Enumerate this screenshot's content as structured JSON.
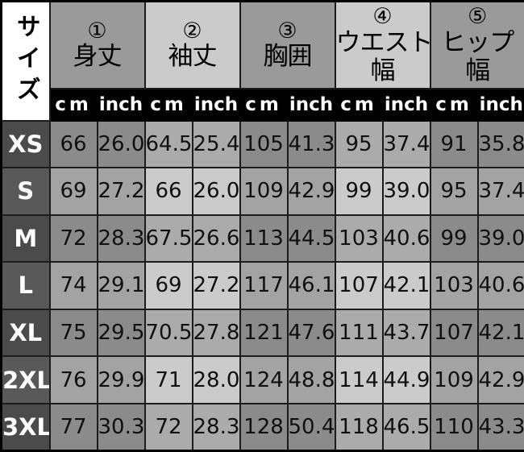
{
  "table": {
    "corner_label": "サイズ",
    "columns": [
      {
        "num": "①",
        "lines": [
          "身丈"
        ]
      },
      {
        "num": "②",
        "lines": [
          "袖丈"
        ]
      },
      {
        "num": "③",
        "lines": [
          "胸囲"
        ]
      },
      {
        "num": "④",
        "lines": [
          "ウエスト",
          "幅"
        ]
      },
      {
        "num": "⑤",
        "lines": [
          "ヒップ",
          "幅"
        ]
      }
    ],
    "unit_labels": {
      "cm": "cm",
      "inch": "inch"
    },
    "rows": [
      {
        "size": "XS",
        "values": [
          [
            "66",
            "26.0"
          ],
          [
            "64.5",
            "25.4"
          ],
          [
            "105",
            "41.3"
          ],
          [
            "95",
            "37.4"
          ],
          [
            "91",
            "35.8"
          ]
        ]
      },
      {
        "size": "S",
        "values": [
          [
            "69",
            "27.2"
          ],
          [
            "66",
            "26.0"
          ],
          [
            "109",
            "42.9"
          ],
          [
            "99",
            "39.0"
          ],
          [
            "95",
            "37.4"
          ]
        ]
      },
      {
        "size": "M",
        "values": [
          [
            "72",
            "28.3"
          ],
          [
            "67.5",
            "26.6"
          ],
          [
            "113",
            "44.5"
          ],
          [
            "103",
            "40.6"
          ],
          [
            "99",
            "39.0"
          ]
        ]
      },
      {
        "size": "L",
        "values": [
          [
            "74",
            "29.1"
          ],
          [
            "69",
            "27.2"
          ],
          [
            "117",
            "46.1"
          ],
          [
            "107",
            "42.1"
          ],
          [
            "103",
            "40.6"
          ]
        ]
      },
      {
        "size": "XL",
        "values": [
          [
            "75",
            "29.5"
          ],
          [
            "70.5",
            "27.8"
          ],
          [
            "121",
            "47.6"
          ],
          [
            "111",
            "43.7"
          ],
          [
            "107",
            "42.1"
          ]
        ]
      },
      {
        "size": "2XL",
        "values": [
          [
            "76",
            "29.9"
          ],
          [
            "71",
            "28.0"
          ],
          [
            "124",
            "48.8"
          ],
          [
            "114",
            "44.9"
          ],
          [
            "109",
            "42.9"
          ]
        ]
      },
      {
        "size": "3XL",
        "values": [
          [
            "77",
            "30.3"
          ],
          [
            "72",
            "28.3"
          ],
          [
            "128",
            "50.4"
          ],
          [
            "118",
            "46.5"
          ],
          [
            "110",
            "43.3"
          ]
        ]
      }
    ],
    "palette": {
      "outer_border": "#000000",
      "grid_line": "#1d1b1b",
      "corner_bg": "#ffffff",
      "header_dark": "#9a9a9a",
      "header_light": "#cbcbcb",
      "unit_row_bg": "#000000",
      "unit_row_text": "#ffffff",
      "size_label_bg_even": "#4b4b4b",
      "size_label_bg_odd": "#595959",
      "cell_dark_even": "#8b8b8b",
      "cell_dark_odd": "#a3a3a3",
      "cell_light_even": "#ababab",
      "cell_light_odd": "#cbcbcb",
      "data_text": "#101010"
    }
  },
  "chart_data": {
    "type": "table",
    "title": "サイズ",
    "columns": [
      "サイズ",
      "①身丈 cm",
      "①身丈 inch",
      "②袖丈 cm",
      "②袖丈 inch",
      "③胸囲 cm",
      "③胸囲 inch",
      "④ウエスト幅 cm",
      "④ウエスト幅 inch",
      "⑤ヒップ幅 cm",
      "⑤ヒップ幅 inch"
    ],
    "rows": [
      [
        "XS",
        66,
        26.0,
        64.5,
        25.4,
        105,
        41.3,
        95,
        37.4,
        91,
        35.8
      ],
      [
        "S",
        69,
        27.2,
        66,
        26.0,
        109,
        42.9,
        99,
        39.0,
        95,
        37.4
      ],
      [
        "M",
        72,
        28.3,
        67.5,
        26.6,
        113,
        44.5,
        103,
        40.6,
        99,
        39.0
      ],
      [
        "L",
        74,
        29.1,
        69,
        27.2,
        117,
        46.1,
        107,
        42.1,
        103,
        40.6
      ],
      [
        "XL",
        75,
        29.5,
        70.5,
        27.8,
        121,
        47.6,
        111,
        43.7,
        107,
        42.1
      ],
      [
        "2XL",
        76,
        29.9,
        71,
        28.0,
        124,
        48.8,
        114,
        44.9,
        109,
        42.9
      ],
      [
        "3XL",
        77,
        30.3,
        72,
        28.3,
        128,
        50.4,
        118,
        46.5,
        110,
        43.3
      ]
    ],
    "layout": {
      "grid": true,
      "checkerboard_shading": true,
      "header_units": [
        "cm",
        "inch"
      ]
    }
  }
}
